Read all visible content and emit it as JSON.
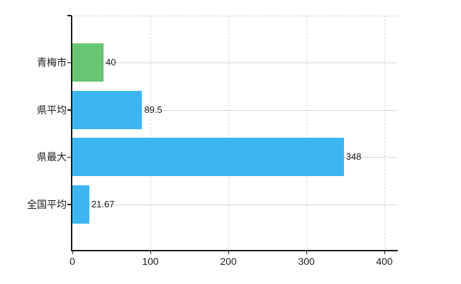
{
  "chart_data": {
    "type": "bar",
    "orientation": "horizontal",
    "categories": [
      "青梅市",
      "県平均",
      "県最大",
      "全国平均"
    ],
    "values": [
      40,
      89.5,
      348,
      21.67
    ],
    "value_labels": [
      "40",
      "89.5",
      "348",
      "21.67"
    ],
    "series": [
      {
        "name": "",
        "values": [
          40,
          89.5,
          348,
          21.67
        ]
      }
    ],
    "bar_colors": [
      "#67c573",
      "#3cb6f0",
      "#3cb6f0",
      "#3cb6f0"
    ],
    "x_ticks": [
      0,
      100,
      200,
      300,
      400
    ],
    "x_tick_labels": [
      "0",
      "100",
      "200",
      "300",
      "400"
    ],
    "xlim": [
      0,
      417
    ],
    "grid": true,
    "gridline_style": {
      "vertical": "dashed",
      "horizontal": "solid"
    },
    "legend": "none",
    "value_labels_shown": true
  },
  "colors": {
    "bar_green": "#67c573",
    "bar_blue": "#3cb6f0",
    "grid": "#d4d8d4",
    "axis": "#1a1a1a",
    "text": "#1a1a1a",
    "background": "#ffffff"
  }
}
